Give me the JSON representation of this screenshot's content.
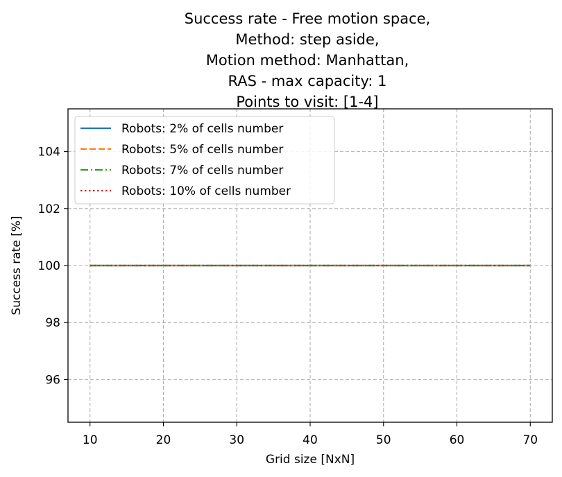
{
  "chart_data": {
    "type": "line",
    "title": [
      "Success rate - Free motion space,",
      "Method: step aside,",
      "Motion method: Manhattan,",
      "RAS - max capacity: 1",
      "Points to visit: [1-4]"
    ],
    "xlabel": "Grid size [NxN]",
    "ylabel": "Success rate [%]",
    "xlim": [
      7,
      73
    ],
    "ylim": [
      94.5,
      105.5
    ],
    "xticks": [
      "10",
      "20",
      "30",
      "40",
      "50",
      "60",
      "70"
    ],
    "yticks": [
      "96",
      "98",
      "100",
      "102",
      "104"
    ],
    "grid": true,
    "legend_position": "top-left",
    "x": [
      10,
      15,
      20,
      25,
      30,
      35,
      40,
      45,
      50,
      55,
      60,
      65,
      70
    ],
    "series": [
      {
        "name": "Robots: 2% of cells number",
        "values": [
          100,
          100,
          100,
          100,
          100,
          100,
          100,
          100,
          100,
          100,
          100,
          100,
          100
        ],
        "color": "#1f77b4",
        "dash": "solid"
      },
      {
        "name": "Robots: 5% of cells number",
        "values": [
          100,
          100,
          100,
          100,
          100,
          100,
          100,
          100,
          100,
          100,
          100,
          100,
          100
        ],
        "color": "#ff7f0e",
        "dash": "dashed"
      },
      {
        "name": "Robots: 7% of cells number",
        "values": [
          100,
          100,
          100,
          100,
          100,
          100,
          100,
          100,
          100,
          100,
          100,
          100,
          100
        ],
        "color": "#2ca02c",
        "dash": "dashdot"
      },
      {
        "name": "Robots: 10% of cells number",
        "values": [
          100,
          100,
          100,
          100,
          100,
          100,
          100,
          100,
          100,
          100,
          100,
          100,
          100
        ],
        "color": "#d62728",
        "dash": "dotted"
      }
    ]
  }
}
